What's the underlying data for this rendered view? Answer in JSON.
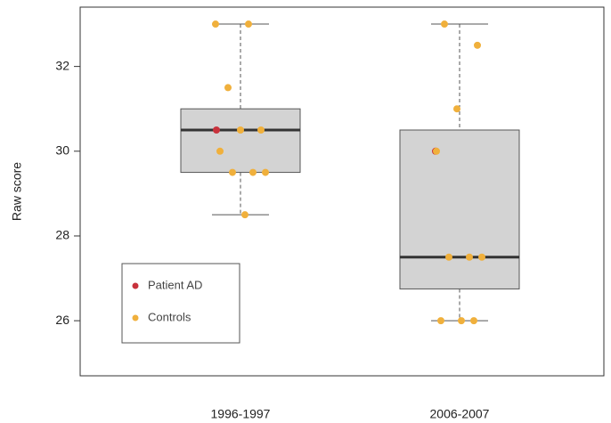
{
  "chart_data": {
    "type": "box",
    "ylabel": "Raw score",
    "categories": [
      "1996-1997",
      "2006-2007"
    ],
    "boxes": [
      {
        "min": 28.5,
        "q1": 29.5,
        "median": 30.5,
        "q3": 31,
        "max": 33
      },
      {
        "min": 26,
        "q1": 26.75,
        "median": 27.5,
        "q3": 30.5,
        "max": 33
      }
    ],
    "box_color": "#d3d3d3",
    "series": [
      {
        "name": "Patient AD",
        "color": "#c8323c",
        "values": [
          [
            30.5
          ],
          [
            30
          ]
        ]
      },
      {
        "name": "Controls",
        "color": "#f0b03c",
        "values": [
          [
            33,
            33,
            31.5,
            30.5,
            30.5,
            30,
            29.5,
            29.5,
            29.5,
            28.5
          ],
          [
            33,
            32.5,
            31,
            30,
            27.5,
            27.5,
            27.5,
            26,
            26,
            26
          ]
        ]
      }
    ],
    "ylim": [
      24.7,
      33.4
    ],
    "yticks": [
      26,
      28,
      30,
      32
    ],
    "legend": "lower left"
  }
}
